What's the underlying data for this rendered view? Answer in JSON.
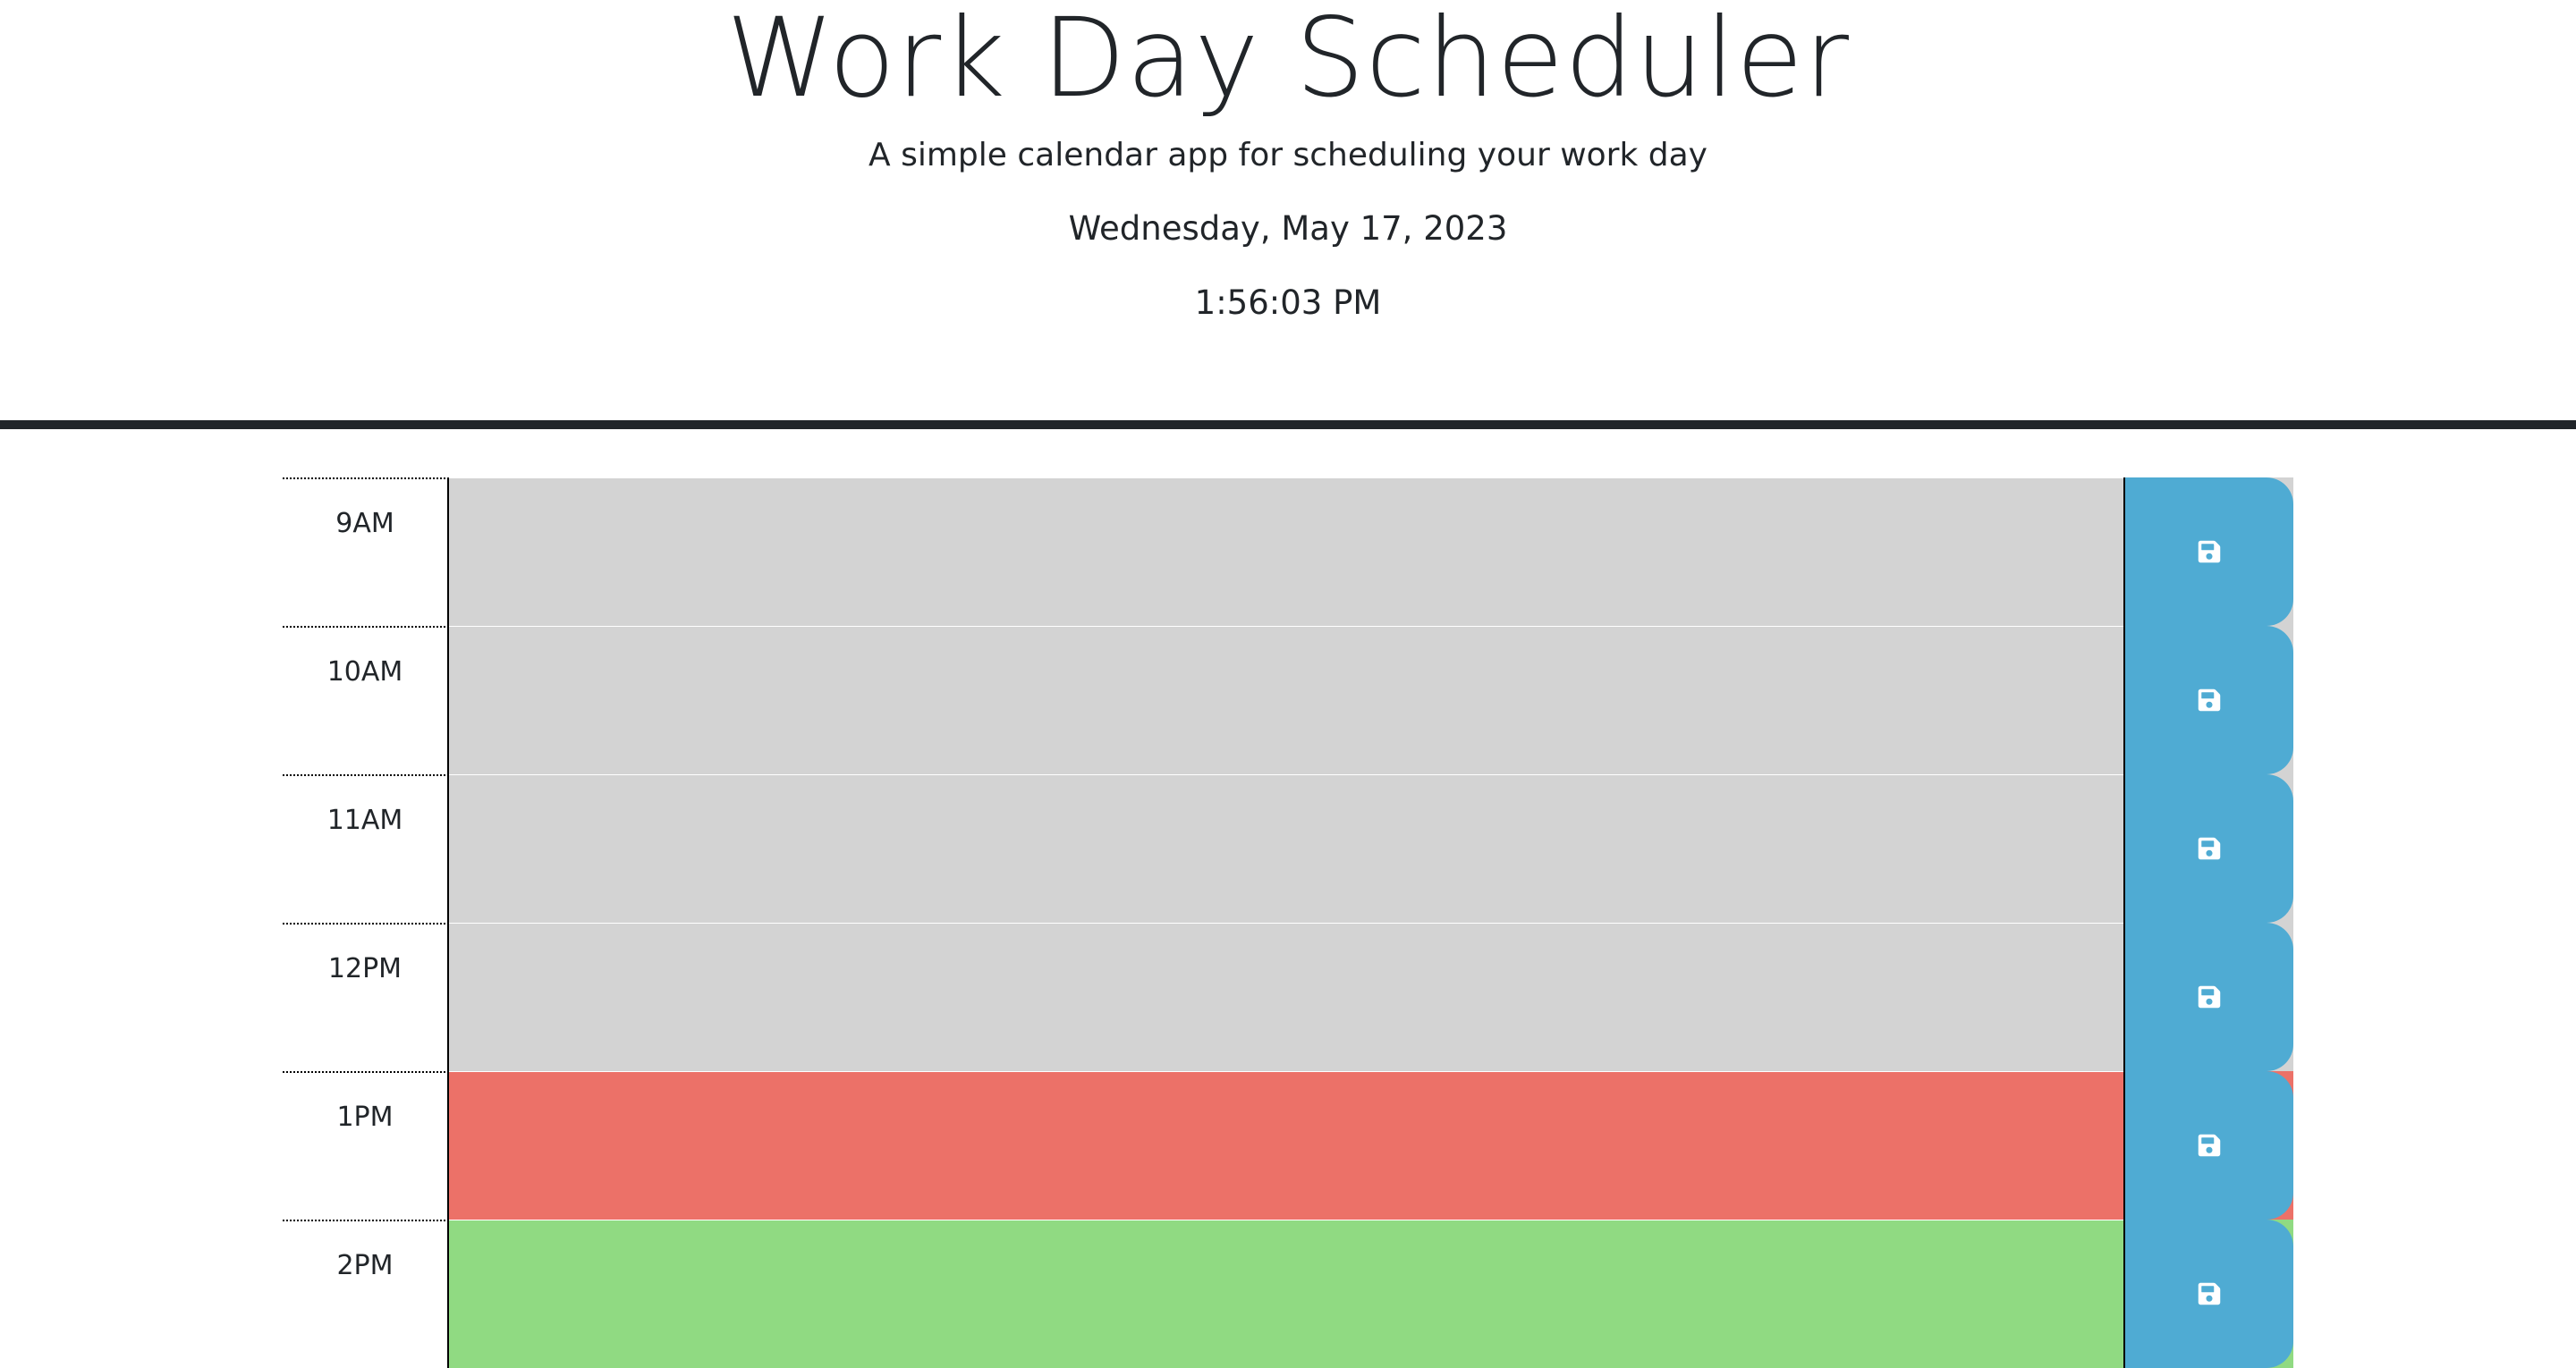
{
  "header": {
    "title": "Work Day Scheduler",
    "subtitle": "A simple calendar app for scheduling your work day",
    "date": "Wednesday, May 17, 2023",
    "time": "1:56:03 PM"
  },
  "colors": {
    "past": "#d3d3d3",
    "present": "#ec7168",
    "future": "#90da82",
    "save_button": "#4fabd3",
    "header_border": "#212529"
  },
  "time_blocks": [
    {
      "hour": "9AM",
      "state": "past",
      "text": "",
      "save_icon": "save-icon"
    },
    {
      "hour": "10AM",
      "state": "past",
      "text": "",
      "save_icon": "save-icon"
    },
    {
      "hour": "11AM",
      "state": "past",
      "text": "",
      "save_icon": "save-icon"
    },
    {
      "hour": "12PM",
      "state": "past",
      "text": "",
      "save_icon": "save-icon"
    },
    {
      "hour": "1PM",
      "state": "present",
      "text": "",
      "save_icon": "save-icon"
    },
    {
      "hour": "2PM",
      "state": "future",
      "text": "",
      "save_icon": "save-icon"
    }
  ]
}
